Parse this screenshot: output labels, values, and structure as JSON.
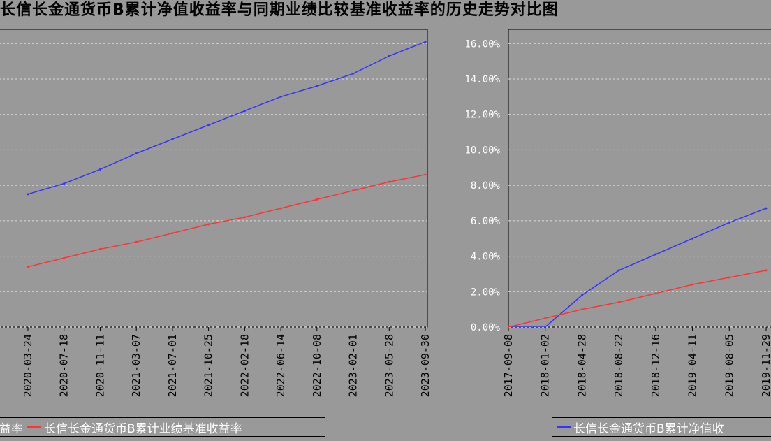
{
  "title": "长信长金通货币B累计净值收益率与同期业绩比较基准收益率的历史走势对比图",
  "colors": {
    "background": "#999999",
    "nav_line": "#3333ff",
    "benchmark_line": "#ff3333",
    "grid": "#dddddd"
  },
  "legend_left": [
    {
      "label": "益率",
      "color": "#3333ff",
      "marker": false
    },
    {
      "label": "长信长金通货币B累计业绩基准收益率",
      "color": "#ff3333",
      "marker": true
    }
  ],
  "legend_right": [
    {
      "label": "长信长金通货币B累计净值收",
      "color": "#3333ff",
      "marker": true
    }
  ],
  "chart_data": [
    {
      "type": "line",
      "x": [
        "2020-03-24",
        "2020-07-18",
        "2020-11-11",
        "2021-03-07",
        "2021-07-01",
        "2021-10-25",
        "2022-02-18",
        "2022-06-14",
        "2022-10-08",
        "2023-02-01",
        "2023-05-28",
        "2023-09-30"
      ],
      "series": [
        {
          "name": "长信长金通货币B累计净值收益率",
          "color": "#3333ff",
          "values": [
            7.5,
            8.1,
            8.9,
            9.8,
            10.6,
            11.4,
            12.2,
            13.0,
            13.6,
            14.3,
            15.3,
            16.1
          ]
        },
        {
          "name": "长信长金通货币B累计业绩基准收益率",
          "color": "#ff3333",
          "values": [
            3.4,
            3.9,
            4.4,
            4.8,
            5.3,
            5.8,
            6.2,
            6.7,
            7.2,
            7.7,
            8.2,
            8.6
          ]
        }
      ],
      "ylim": [
        0,
        16.8
      ],
      "grid": true,
      "legend": "bottom"
    },
    {
      "type": "line",
      "x": [
        "2017-09-08",
        "2018-01-02",
        "2018-04-28",
        "2018-08-22",
        "2018-12-16",
        "2019-04-11",
        "2019-08-05",
        "2019-11-29"
      ],
      "yticks": [
        "0.00%",
        "2.00%",
        "4.00%",
        "6.00%",
        "8.00%",
        "10.00%",
        "12.00%",
        "14.00%",
        "16.00%"
      ],
      "series": [
        {
          "name": "长信长金通货币B累计净值收益率",
          "color": "#3333ff",
          "values": [
            0.0,
            0.0,
            1.8,
            3.2,
            4.1,
            5.0,
            5.9,
            6.7
          ]
        },
        {
          "name": "长信长金通货币B累计业绩基准收益率",
          "color": "#ff3333",
          "values": [
            0.0,
            0.5,
            1.0,
            1.4,
            1.9,
            2.4,
            2.8,
            3.2
          ]
        }
      ],
      "ylim": [
        0,
        16.8
      ],
      "grid": true,
      "legend": "bottom"
    }
  ]
}
